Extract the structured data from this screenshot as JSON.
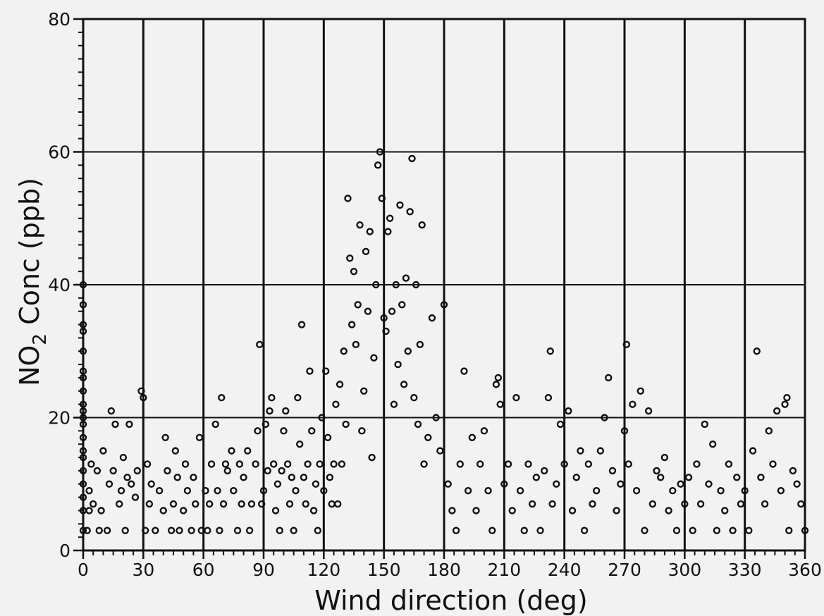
{
  "chart_data": {
    "type": "scatter",
    "xlabel": "Wind  direction  (deg)",
    "ylabel_main": "NO",
    "ylabel_sub": "2",
    "ylabel_rest": "  Conc  (ppb)",
    "xlim": [
      0,
      360
    ],
    "ylim": [
      0,
      80
    ],
    "x_ticks": [
      "0",
      "30",
      "60",
      "90",
      "120",
      "150",
      "180",
      "210",
      "240",
      "270",
      "300",
      "330",
      "360"
    ],
    "y_ticks": [
      "0",
      "20",
      "40",
      "60",
      "80"
    ],
    "grid": true,
    "point_style": "open circle",
    "series": [
      {
        "points": [
          [
            0,
            3
          ],
          [
            0,
            6
          ],
          [
            0,
            8
          ],
          [
            0,
            10
          ],
          [
            0,
            12
          ],
          [
            0,
            14
          ],
          [
            0,
            15
          ],
          [
            0,
            17
          ],
          [
            0,
            19
          ],
          [
            0,
            20
          ],
          [
            0,
            21
          ],
          [
            0,
            22
          ],
          [
            0,
            24
          ],
          [
            0,
            26
          ],
          [
            0,
            27
          ],
          [
            0,
            30
          ],
          [
            0,
            33
          ],
          [
            0,
            34
          ],
          [
            0,
            37
          ],
          [
            0,
            40
          ],
          [
            2,
            3
          ],
          [
            3,
            6
          ],
          [
            3,
            9
          ],
          [
            4,
            13
          ],
          [
            5,
            7
          ],
          [
            7,
            12
          ],
          [
            8,
            3
          ],
          [
            9,
            6
          ],
          [
            10,
            15
          ],
          [
            12,
            3
          ],
          [
            13,
            10
          ],
          [
            14,
            21
          ],
          [
            15,
            12
          ],
          [
            16,
            19
          ],
          [
            18,
            7
          ],
          [
            19,
            9
          ],
          [
            20,
            14
          ],
          [
            21,
            3
          ],
          [
            22,
            11
          ],
          [
            23,
            19
          ],
          [
            24,
            10
          ],
          [
            26,
            8
          ],
          [
            27,
            12
          ],
          [
            29,
            24
          ],
          [
            30,
            23
          ],
          [
            31,
            3
          ],
          [
            32,
            13
          ],
          [
            33,
            7
          ],
          [
            34,
            10
          ],
          [
            36,
            3
          ],
          [
            38,
            9
          ],
          [
            40,
            6
          ],
          [
            41,
            17
          ],
          [
            42,
            12
          ],
          [
            44,
            3
          ],
          [
            45,
            7
          ],
          [
            46,
            15
          ],
          [
            47,
            11
          ],
          [
            48,
            3
          ],
          [
            50,
            6
          ],
          [
            51,
            13
          ],
          [
            52,
            9
          ],
          [
            54,
            3
          ],
          [
            55,
            11
          ],
          [
            56,
            7
          ],
          [
            58,
            17
          ],
          [
            59,
            3
          ],
          [
            61,
            9
          ],
          [
            62,
            3
          ],
          [
            63,
            7
          ],
          [
            64,
            13
          ],
          [
            66,
            19
          ],
          [
            67,
            9
          ],
          [
            68,
            3
          ],
          [
            69,
            23
          ],
          [
            70,
            7
          ],
          [
            71,
            13
          ],
          [
            72,
            12
          ],
          [
            74,
            15
          ],
          [
            75,
            9
          ],
          [
            77,
            3
          ],
          [
            78,
            13
          ],
          [
            79,
            7
          ],
          [
            80,
            11
          ],
          [
            82,
            15
          ],
          [
            83,
            3
          ],
          [
            84,
            7
          ],
          [
            86,
            13
          ],
          [
            87,
            18
          ],
          [
            88,
            31
          ],
          [
            89,
            7
          ],
          [
            90,
            9
          ],
          [
            91,
            19
          ],
          [
            92,
            12
          ],
          [
            93,
            21
          ],
          [
            94,
            23
          ],
          [
            95,
            13
          ],
          [
            96,
            6
          ],
          [
            97,
            10
          ],
          [
            98,
            3
          ],
          [
            99,
            12
          ],
          [
            100,
            18
          ],
          [
            101,
            21
          ],
          [
            102,
            13
          ],
          [
            103,
            7
          ],
          [
            104,
            11
          ],
          [
            105,
            3
          ],
          [
            106,
            9
          ],
          [
            107,
            23
          ],
          [
            108,
            16
          ],
          [
            109,
            34
          ],
          [
            110,
            11
          ],
          [
            111,
            7
          ],
          [
            112,
            13
          ],
          [
            113,
            27
          ],
          [
            114,
            18
          ],
          [
            115,
            6
          ],
          [
            116,
            10
          ],
          [
            117,
            3
          ],
          [
            118,
            13
          ],
          [
            119,
            20
          ],
          [
            120,
            9
          ],
          [
            121,
            27
          ],
          [
            122,
            17
          ],
          [
            123,
            11
          ],
          [
            124,
            7
          ],
          [
            125,
            13
          ],
          [
            126,
            22
          ],
          [
            127,
            7
          ],
          [
            128,
            25
          ],
          [
            129,
            13
          ],
          [
            130,
            30
          ],
          [
            131,
            19
          ],
          [
            132,
            53
          ],
          [
            133,
            44
          ],
          [
            134,
            34
          ],
          [
            135,
            42
          ],
          [
            136,
            31
          ],
          [
            137,
            37
          ],
          [
            138,
            49
          ],
          [
            139,
            18
          ],
          [
            140,
            24
          ],
          [
            141,
            45
          ],
          [
            142,
            36
          ],
          [
            143,
            48
          ],
          [
            144,
            14
          ],
          [
            145,
            29
          ],
          [
            146,
            40
          ],
          [
            147,
            58
          ],
          [
            148,
            60
          ],
          [
            149,
            53
          ],
          [
            150,
            35
          ],
          [
            151,
            33
          ],
          [
            152,
            48
          ],
          [
            153,
            50
          ],
          [
            154,
            36
          ],
          [
            155,
            22
          ],
          [
            156,
            40
          ],
          [
            157,
            28
          ],
          [
            158,
            52
          ],
          [
            159,
            37
          ],
          [
            160,
            25
          ],
          [
            161,
            41
          ],
          [
            162,
            30
          ],
          [
            163,
            51
          ],
          [
            164,
            59
          ],
          [
            165,
            23
          ],
          [
            166,
            40
          ],
          [
            167,
            19
          ],
          [
            168,
            31
          ],
          [
            169,
            49
          ],
          [
            170,
            13
          ],
          [
            172,
            17
          ],
          [
            174,
            35
          ],
          [
            176,
            20
          ],
          [
            178,
            15
          ],
          [
            180,
            37
          ],
          [
            182,
            10
          ],
          [
            184,
            6
          ],
          [
            186,
            3
          ],
          [
            188,
            13
          ],
          [
            190,
            27
          ],
          [
            192,
            9
          ],
          [
            194,
            17
          ],
          [
            196,
            6
          ],
          [
            198,
            13
          ],
          [
            200,
            18
          ],
          [
            202,
            9
          ],
          [
            204,
            3
          ],
          [
            206,
            25
          ],
          [
            207,
            26
          ],
          [
            208,
            22
          ],
          [
            210,
            10
          ],
          [
            212,
            13
          ],
          [
            214,
            6
          ],
          [
            216,
            23
          ],
          [
            218,
            9
          ],
          [
            220,
            3
          ],
          [
            222,
            13
          ],
          [
            224,
            7
          ],
          [
            226,
            11
          ],
          [
            228,
            3
          ],
          [
            230,
            12
          ],
          [
            232,
            23
          ],
          [
            233,
            30
          ],
          [
            234,
            7
          ],
          [
            236,
            10
          ],
          [
            238,
            19
          ],
          [
            240,
            13
          ],
          [
            242,
            21
          ],
          [
            244,
            6
          ],
          [
            246,
            11
          ],
          [
            248,
            15
          ],
          [
            250,
            3
          ],
          [
            252,
            13
          ],
          [
            254,
            7
          ],
          [
            256,
            9
          ],
          [
            258,
            15
          ],
          [
            260,
            20
          ],
          [
            262,
            26
          ],
          [
            264,
            12
          ],
          [
            266,
            6
          ],
          [
            268,
            10
          ],
          [
            270,
            18
          ],
          [
            271,
            31
          ],
          [
            272,
            13
          ],
          [
            274,
            22
          ],
          [
            276,
            9
          ],
          [
            278,
            24
          ],
          [
            280,
            3
          ],
          [
            282,
            21
          ],
          [
            284,
            7
          ],
          [
            286,
            12
          ],
          [
            288,
            11
          ],
          [
            290,
            14
          ],
          [
            292,
            6
          ],
          [
            294,
            9
          ],
          [
            296,
            3
          ],
          [
            298,
            10
          ],
          [
            300,
            7
          ],
          [
            302,
            11
          ],
          [
            304,
            3
          ],
          [
            306,
            13
          ],
          [
            308,
            7
          ],
          [
            310,
            19
          ],
          [
            312,
            10
          ],
          [
            314,
            16
          ],
          [
            316,
            3
          ],
          [
            318,
            9
          ],
          [
            320,
            6
          ],
          [
            322,
            13
          ],
          [
            324,
            3
          ],
          [
            326,
            11
          ],
          [
            328,
            7
          ],
          [
            330,
            9
          ],
          [
            332,
            3
          ],
          [
            334,
            15
          ],
          [
            336,
            30
          ],
          [
            338,
            11
          ],
          [
            340,
            7
          ],
          [
            342,
            18
          ],
          [
            344,
            13
          ],
          [
            346,
            21
          ],
          [
            348,
            9
          ],
          [
            350,
            22
          ],
          [
            351,
            23
          ],
          [
            352,
            3
          ],
          [
            354,
            12
          ],
          [
            356,
            10
          ],
          [
            358,
            7
          ],
          [
            360,
            3
          ]
        ]
      }
    ]
  }
}
